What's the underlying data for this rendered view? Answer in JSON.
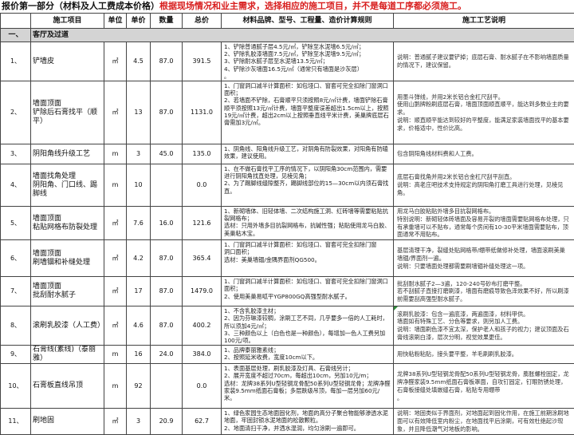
{
  "title": {
    "black": "报价第一部分（材料及人工费成本价格）",
    "red": "根据现场情况和业主需求，选择相应的施工项目，并不是每道工序都必须施工。"
  },
  "headers": [
    "",
    "施工项目",
    "单位",
    "单价",
    "数量",
    "总价",
    "材料品牌、型号、工程量、造价计算规则",
    "施工工艺说明"
  ],
  "section": {
    "no": "一、",
    "name": "客厅及过道"
  },
  "rows": [
    {
      "no": "1、",
      "item": "铲墙皮",
      "unit": "㎡",
      "price": "4.5",
      "qty": "87.0",
      "total": "391.5",
      "materials": "1、铲除普通腻子层4.5元/㎡，铲除至水泥墙6.5元/㎡；\n2、铲除乳胶漆墙面7.5元/㎡，铲除至水泥墙9.5元/㎡；\n3、铲除耐水腻子层至水泥墙13.5元/㎡；\n4、铲除沙灰墙面16.5元/㎡（通常只有墙面是沙灰层）\n。",
      "desc": "说明：普通腻子建议要铲掉；底层石膏、耐水腻子在不影响墙面质量的情况下，建议保留。"
    },
    {
      "no": "2、",
      "item": "墙面顶面\n铲除后石膏找平（顺平）",
      "unit": "㎡",
      "price": "13",
      "qty": "87.0",
      "total": "1131.0",
      "materials": "1、门窗洞口减半计算面积：如包垭口、窗套可完全扣除门窗洞口面积；\n2、若墙面不铲除，石膏顺平只须按照8元/㎡计费，墙面铲除石膏顺平须按照13元/㎡计费，墙面平整度误差超出1.5cm以上，按照19元/㎡计费，超出2cm以上按照垂直线平米计费，美巢牌底层石膏需加3元/㎡。",
      "desc": "用墨斗弹线，并用2米长铝合金杠尺刮平。\n使用山鹅牌粉刷底层石膏，墙面顶面顺直顺平，能达到多数业主的要求。\n说明：顺直顺平能达到较好的平整度，能满足家装墙面找平的基本要求，价格适中，性价比高。"
    },
    {
      "no": "3、",
      "item": "阴阳角线升级工艺",
      "unit": "m",
      "price": "3",
      "qty": "45.0",
      "total": "135.0",
      "materials": "1、阴角线、阳角线升级工艺，对阴角有防裂效果，对阳角有防磕效果，建议使用。",
      "desc": "包含阴阳角线材料费和人工费。"
    },
    {
      "no": "4、",
      "item": "墙面找角处理\n阴阳角、门口线、踢脚线",
      "unit": "m",
      "price": "10",
      "qty": "",
      "total": "0.0",
      "materials": "1、在不做石膏找平工序的情况下，以阴阳角30cm范围内，需要进行阴阳角找直处理，见棱见角；\n2、为了踢脚线缝隙整齐，踢脚线部位的15—30cm以内须石膏找直。",
      "desc": "底层石膏找角并用2米长铝合金杠尺刮平刮直。\n说明：高老庄吧技术支持规定的阴阳角打磨工具进行处理，见棱见角。"
    },
    {
      "no": "5、",
      "item": "墙面顶面\n粘贴网格布防裂处理",
      "unit": "㎡",
      "price": "7.6",
      "qty": "16.0",
      "total": "121.6",
      "materials": "1、新砌墙体、旧轻体墙、二次结构施工洞、红砖墙等需要粘贴抗裂网格布；\n选材：只用外墙多目抗裂网格布，抗碱性强；粘贴使用龙马白胶、美巢粘木宝。",
      "desc": "用龙马白胶粘贴外墙多目抗裂网格布。\n特别说明：新砌轻体砖墙面及容易开裂的墙面需要贴网格布处理，只有承重墙可以不贴布，通常每个房间有10-30平米墙面需要贴布，顶面通常不用贴布。"
    },
    {
      "no": "6、",
      "item": "墙面顶面\n刷墙锢和补缝处理",
      "unit": "㎡",
      "price": "4.2",
      "qty": "87.0",
      "total": "365.4",
      "materials": "1、门窗洞口减半计算面积：如包垭口、窗套可完全扣除门窗\n洞口面积；\n选材：美巢墙锢/金隅界面剂QG500。",
      "desc": "基层清理干净，裂缝处贴网格带/绷带纸做修补处理，墙面滚刷美巢墙锢/界面剂一遍。\n说明：只要墙面处理都需要刷墙锢补缝处理这一项。"
    },
    {
      "no": "7、",
      "item": "墙面顶面\n批刮耐水腻子",
      "unit": "㎡",
      "price": "17",
      "qty": "87.0",
      "total": "1479.0",
      "materials": "1、门窗洞口减半计算面积：如包垭口、窗套可完全扣除门窗洞口面积；\n2、使用美巢易呱平YGP800GQ高强型耐水腻子。",
      "desc": "批刮耐水腻子2—3遍，120-240号砂布打磨平整。\n若不刮腻子直接打磨刷漆，墙面有磨痕导致色泽效果不好，所以刷漆前需要刮高强型耐水腻子。"
    },
    {
      "no": "8、",
      "item": "滚刷乳胶漆（人工费）",
      "unit": "㎡",
      "price": "4.6",
      "qty": "87.0",
      "total": "400.2",
      "materials": "1、不含乳胶漆主材；\n2、因为芬琳漆较稠，涂刷工艺不同，几乎要多一倍的人工耗时，所以须加4元/㎡；\n3、三种颜色以上（白色也是一种颜色），每增加一色人工费另加100元/项。",
      "desc": "滚刷乳胶漆：包含一遍底漆，两遍面漆，材料甲供。\n墙面如有特殊工艺、分色等要求，则另加人工费。\n说明：墙面刷色漆不宜太深，保护老人和孩子的视力；建议顶面及石膏线滚刷白漆，层次分明，视觉效果更佳。"
    },
    {
      "no": "9、",
      "item": "石膏线(素线)（泰丽雅）",
      "unit": "m",
      "price": "16",
      "qty": "24.0",
      "total": "384.0",
      "materials": "1、品牌泰丽雅素线；\n2、按照延米收费，宽度10cm以下。",
      "desc": "用快粘粉粘贴，接头要平整，羊毛刷刷乳胶漆。"
    },
    {
      "no": "10、",
      "item": "石膏板直线吊顶",
      "unit": "m",
      "price": "92",
      "qty": "",
      "total": "0.0",
      "materials": "1、表面基层处理，刷乳胶漆及灯具、石膏线另计；\n2、展开宽度不超过70cm，每超出10cm，另加10元/m；\n选材：龙牌38系列U型轻钢龙骨配50系列U型轻钢龙骨；龙牌净醛家装9.5mm纸面石膏板；多层跌级吊顶，每加一层另加60元/米。",
      "desc": "龙牌38系列U型轻钢龙骨配50系列U型轻钢龙骨，膨胀螺栓固定，龙牌净醛家装9.5mm纸面石膏板罩面，自攻钉固定，钉眼防锈处理，石膏板接缝处填嵌缝石膏，粘贴专用绷带\n。"
    },
    {
      "no": "11、",
      "item": "刷地固",
      "unit": "㎡",
      "price": "3",
      "qty": "20.9",
      "total": "62.7",
      "materials": "1、绿色家园生态地面固化剂，地面的高分子聚合物能够渗透水泥地面，牢固封锁水泥地面的松散颗粒。\n2、地面清扫干净，并洒水湿润，均匀涂刷一遍即可。",
      "desc": "说明：地固类似于界面剂，对地面起到固化作用，在施工前期涂刷地面可以有效降低室内粉尘，在地面找平后涂刷，可有效杜绝起沙现象，并且降低潮气对地板的影响。"
    }
  ],
  "colors": {
    "title_red": "#d81e1e",
    "section_bg": "#d4d4d4",
    "comment_marker": "#2e8b3a"
  }
}
